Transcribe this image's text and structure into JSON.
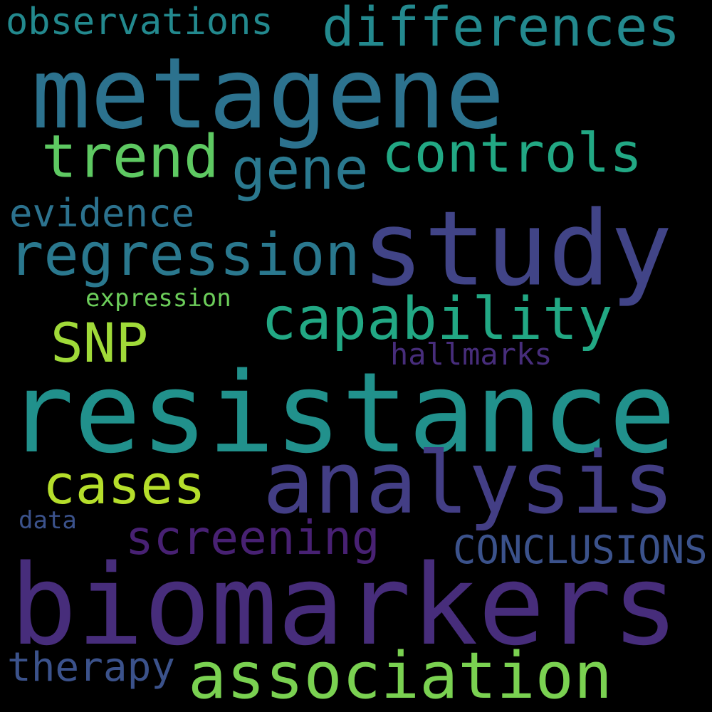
{
  "words": {
    "resistance": {
      "text": "resistance",
      "color": "#21918c"
    },
    "biomarkers": {
      "text": "biomarkers",
      "color": "#472d7b"
    },
    "metagene": {
      "text": "metagene",
      "color": "#2c728e"
    },
    "study": {
      "text": "study",
      "color": "#414487"
    },
    "analysis": {
      "text": "analysis",
      "color": "#433e85"
    },
    "association": {
      "text": "association",
      "color": "#7ad151"
    },
    "differences": {
      "text": "differences",
      "color": "#23898e"
    },
    "regression": {
      "text": "regression",
      "color": "#2a788e"
    },
    "capability": {
      "text": "capability",
      "color": "#22a884"
    },
    "controls": {
      "text": "controls",
      "color": "#22a884"
    },
    "trend": {
      "text": "trend",
      "color": "#5ec962"
    },
    "gene": {
      "text": "gene",
      "color": "#2a788e"
    },
    "cases": {
      "text": "cases",
      "color": "#b5de2b"
    },
    "screening": {
      "text": "screening",
      "color": "#482173"
    },
    "snp": {
      "text": "SNP",
      "color": "#a0da39"
    },
    "conclusions": {
      "text": "CONCLUSIONS",
      "color": "#3b528b"
    },
    "therapy": {
      "text": "therapy",
      "color": "#3b528b"
    },
    "evidence": {
      "text": "evidence",
      "color": "#2c728e"
    },
    "observations": {
      "text": "observations",
      "color": "#23898e"
    },
    "hallmarks": {
      "text": "hallmarks",
      "color": "#472d7b"
    },
    "expression": {
      "text": "expression",
      "color": "#6ccd5a"
    },
    "data": {
      "text": "data",
      "color": "#3b528b"
    }
  }
}
